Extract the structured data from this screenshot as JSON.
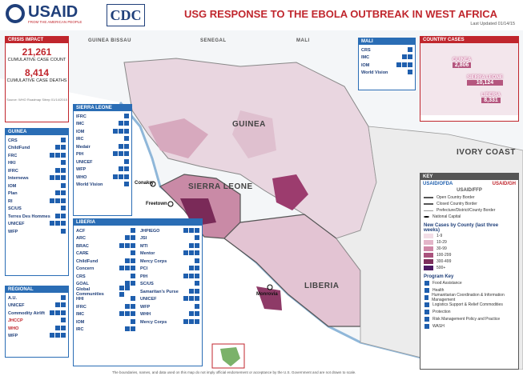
{
  "header": {
    "logo_text": "USAID",
    "logo_tagline": "FROM THE AMERICAN PEOPLE",
    "cdc": "CDC",
    "title": "USG RESPONSE TO THE EBOLA OUTBREAK IN WEST AFRICA",
    "updated": "Last Updated 01/14/15"
  },
  "map_labels": [
    "GUINEA BISSAU",
    "SENEGAL",
    "MALI",
    "GUINEA",
    "SIERRA LEONE",
    "LIBERIA",
    "IVORY COAST"
  ],
  "cities": [
    "Conakry",
    "Freetown",
    "Monrovia"
  ],
  "crisis_impact": {
    "title": "CRISIS IMPACT",
    "cases": "21,261",
    "cases_label": "CUMULATIVE CASE COUNT",
    "deaths": "8,414",
    "deaths_label": "CUMULATIVE CASE DEATHS",
    "source": "Source: WHO Roadmap Sitrep 01/14/2015"
  },
  "panels": [
    {
      "title": "GUINEA",
      "items": [
        "CRS",
        "ChildFund",
        "FRC",
        "HKI",
        "IFRC",
        "Internews",
        "IOM",
        "Plan",
        "RI",
        "SC/US",
        "Terres Des Hommes",
        "UNICEF",
        "WFP"
      ]
    },
    {
      "title": "REGIONAL",
      "items": [
        "A.U.",
        "UNICEF",
        "Commodity Airlift",
        "JHCCP",
        "WHO",
        "WFP"
      ]
    },
    {
      "title": "SIERRA LEONE",
      "items": [
        "IFRC",
        "IMC",
        "IOM",
        "IRC",
        "Medair",
        "PIH",
        "UNICEF",
        "WFP",
        "WHO",
        "World Vision"
      ]
    },
    {
      "title": "LIBERIA",
      "items": [
        "ACF",
        "ARC",
        "BRAC",
        "CARE",
        "ChildFund",
        "Concern",
        "CRS",
        "GOAL",
        "Global Communities",
        "HHI",
        "IFRC",
        "IMC",
        "IOM",
        "IRC",
        "JHPIEGO",
        "JSI",
        "MTI",
        "Mentor",
        "Mercy Corps",
        "PCI",
        "PIH",
        "SC/US",
        "Samaritan's Purse",
        "UNICEF",
        "WFP",
        "WHH",
        "Mercy Corps"
      ]
    },
    {
      "title": "MALI",
      "items": [
        "CRS",
        "IMC",
        "IOM",
        "World Vision"
      ]
    }
  ],
  "country_cases": {
    "title": "COUNTRY CASES",
    "countries": [
      {
        "name": "GUINEA",
        "cases": "2,806"
      },
      {
        "name": "SIERRA LEONE",
        "cases": "10,124"
      },
      {
        "name": "LIBERIA",
        "cases": "8,331"
      }
    ]
  },
  "key": {
    "title": "KEY",
    "agencies": [
      "USAID/OFDA",
      "USAID/GH",
      "USAID/FFP"
    ],
    "borders": [
      "Open Country Border",
      "Closed Country Border",
      "Prefecture/District/County Border",
      "National Capital"
    ],
    "cases_title": "New Cases by County (last three weeks)",
    "classes": [
      "1-9",
      "10-29",
      "30-99",
      "100-299",
      "300-499",
      "500+"
    ],
    "program_title": "Program Key",
    "programs": [
      "Food Assistance",
      "Health",
      "Humanitarian Coordination & Information Management",
      "Logistics Support & Relief Commodities",
      "Protection",
      "Risk Management Policy and Practice",
      "WASH"
    ]
  },
  "footer": "The boundaries, names, and data used on this map do not imply official endorsement or acceptance by the U.S. Government and are not drawn to scale."
}
